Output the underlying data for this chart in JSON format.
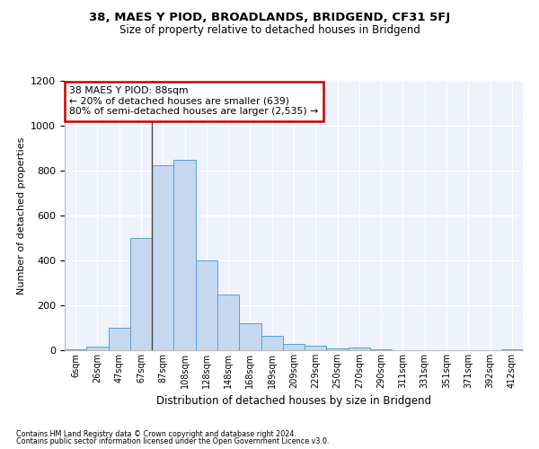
{
  "title": "38, MAES Y PIOD, BROADLANDS, BRIDGEND, CF31 5FJ",
  "subtitle": "Size of property relative to detached houses in Bridgend",
  "xlabel": "Distribution of detached houses by size in Bridgend",
  "ylabel": "Number of detached properties",
  "footer_line1": "Contains HM Land Registry data © Crown copyright and database right 2024.",
  "footer_line2": "Contains public sector information licensed under the Open Government Licence v3.0.",
  "annotation_title": "38 MAES Y PIOD: 88sqm",
  "annotation_line2": "← 20% of detached houses are smaller (639)",
  "annotation_line3": "80% of semi-detached houses are larger (2,535) →",
  "bar_color": "#c5d8f0",
  "bar_edge_color": "#5a9fd4",
  "vline_color": "#444444",
  "annotation_box_color": "#ffffff",
  "annotation_box_edge": "#cc0000",
  "background_color": "#eef2fa",
  "categories": [
    "6sqm",
    "26sqm",
    "47sqm",
    "67sqm",
    "87sqm",
    "108sqm",
    "128sqm",
    "148sqm",
    "168sqm",
    "189sqm",
    "209sqm",
    "229sqm",
    "250sqm",
    "270sqm",
    "290sqm",
    "311sqm",
    "331sqm",
    "351sqm",
    "371sqm",
    "392sqm",
    "412sqm"
  ],
  "values": [
    5,
    15,
    100,
    500,
    825,
    850,
    400,
    250,
    120,
    65,
    30,
    20,
    10,
    12,
    5,
    2,
    2,
    2,
    1,
    0,
    3
  ],
  "vline_index": 4,
  "ylim": [
    0,
    1200
  ],
  "yticks": [
    0,
    200,
    400,
    600,
    800,
    1000,
    1200
  ]
}
